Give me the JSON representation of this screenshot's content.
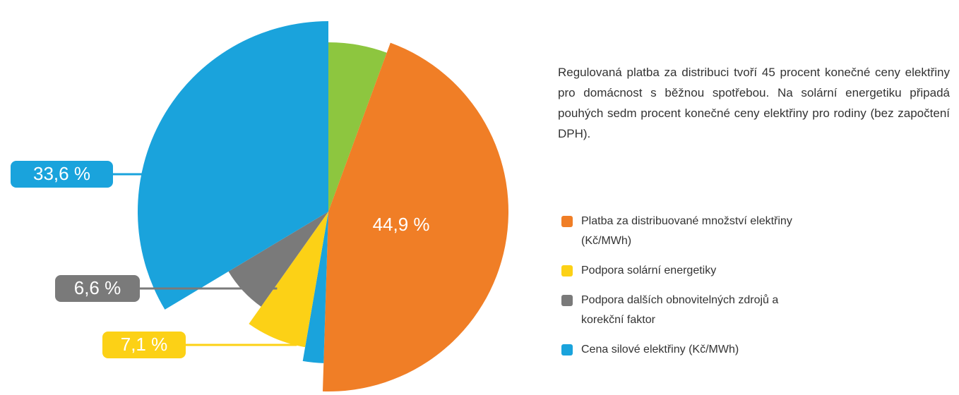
{
  "chart_data": {
    "type": "pie",
    "values": [
      5.6,
      44.9,
      2.2,
      7.1,
      6.6,
      33.6
    ],
    "value_labels": [
      null,
      "44,9 %",
      null,
      "7,1 %",
      "6,6 %",
      "33,6 %"
    ],
    "colors": [
      "#8dc63f",
      "#f07e26",
      "#1aa3dc",
      "#fcd116",
      "#7a7a7a",
      "#1aa3dc"
    ],
    "description": "Regulovaná platba za distribuci tvoří 45 procent konečné ceny elektřiny pro domácnost s běžnou spotřebou. Na solární energetiku připadá pouhých sedm procent konečné ceny elektřiny pro rodiny (bez započtení DPH).",
    "legend": [
      {
        "name": "Platba za distribuované množství elektřiny (Kč/MWh)",
        "color": "#f07e26"
      },
      {
        "name": "Podpora solární energetiky",
        "color": "#fcd116"
      },
      {
        "name": "Podpora dalších obnovitelných zdrojů a korekční faktor",
        "color": "#7a7a7a"
      },
      {
        "name": "Cena silové elektřiny (Kč/MWh)",
        "color": "#1aa3dc"
      }
    ]
  }
}
